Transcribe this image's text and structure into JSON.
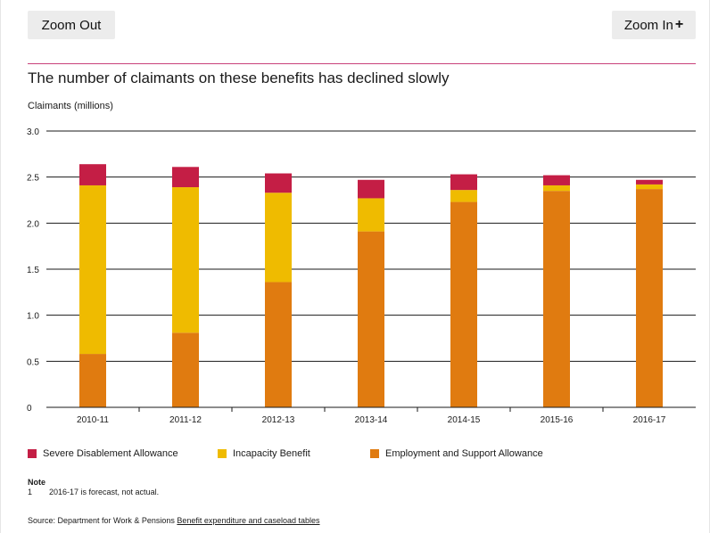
{
  "controls": {
    "zoom_out_label": "Zoom Out",
    "zoom_in_label": "Zoom In",
    "zoom_in_icon": "plus-icon"
  },
  "header": {
    "title": "The number of claimants on these benefits has declined slowly",
    "accent_rule_color": "#c8417a"
  },
  "chart_data": {
    "type": "bar",
    "stacked": true,
    "title": "The number of claimants on these benefits has declined slowly",
    "ylabel": "Claimants (millions)",
    "xlabel": "",
    "ylim": [
      0,
      3.0
    ],
    "yticks": [
      "0",
      "0.5",
      "1.0",
      "1.5",
      "2.0",
      "2.5",
      "3.0"
    ],
    "ytick_values": [
      0,
      0.5,
      1.0,
      1.5,
      2.0,
      2.5,
      3.0
    ],
    "grid": true,
    "legend_position": "bottom",
    "categories": [
      "2010-11",
      "2011-12",
      "2012-13",
      "2013-14",
      "2014-15",
      "2015-16",
      "2016-17"
    ],
    "series": [
      {
        "name": "Employment and Support Allowance",
        "color": "#e07b10",
        "values": [
          0.58,
          0.81,
          1.36,
          1.91,
          2.23,
          2.35,
          2.37
        ]
      },
      {
        "name": "Incapacity Benefit",
        "color": "#efbb00",
        "values": [
          1.83,
          1.58,
          0.97,
          0.36,
          0.13,
          0.06,
          0.05
        ]
      },
      {
        "name": "Severe Disablement Allowance",
        "color": "#c41e45",
        "values": [
          0.23,
          0.22,
          0.21,
          0.2,
          0.17,
          0.11,
          0.05
        ]
      }
    ],
    "legend_order": [
      "Severe Disablement Allowance",
      "Incapacity Benefit",
      "Employment and Support Allowance"
    ]
  },
  "notes": {
    "heading": "Note",
    "items": [
      {
        "num": "1",
        "text": "2016-17 is forecast, not actual."
      }
    ]
  },
  "source": {
    "prefix": "Source: Department for Work & Pensions ",
    "link_text": "Benefit expenditure and caseload tables"
  }
}
